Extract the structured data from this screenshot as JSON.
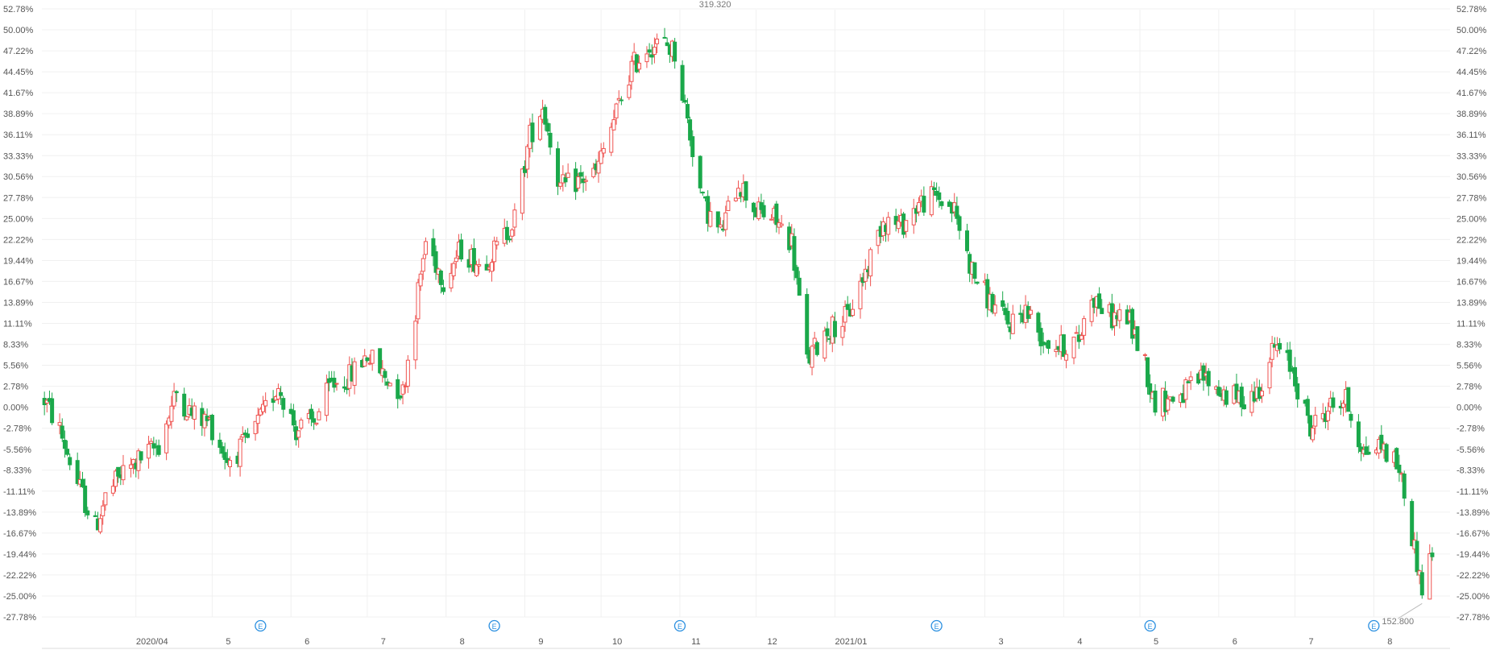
{
  "chart": {
    "max_price_label": "319.320",
    "min_price_label": "152.800",
    "earnings_marker_label": "E"
  },
  "chart_data": {
    "type": "candlestick",
    "y_unit": "% change",
    "ylim": [
      -27.78,
      52.78
    ],
    "y_ticks": [
      "52.78%",
      "50.00%",
      "47.22%",
      "44.45%",
      "41.67%",
      "38.89%",
      "36.11%",
      "33.33%",
      "30.56%",
      "27.78%",
      "25.00%",
      "22.22%",
      "19.44%",
      "16.67%",
      "13.89%",
      "11.11%",
      "8.33%",
      "5.56%",
      "2.78%",
      "0.00%",
      "-2.78%",
      "-5.56%",
      "-8.33%",
      "-11.11%",
      "-13.89%",
      "-16.67%",
      "-19.44%",
      "-22.22%",
      "-25.00%",
      "-27.78%"
    ],
    "x_start": "2020-02-24",
    "x_end": "2021-08-31",
    "x_ticks": [
      {
        "date": "2020-04-01",
        "label": "2020/04"
      },
      {
        "date": "2020-05-01",
        "label": "5"
      },
      {
        "date": "2020-06-01",
        "label": "6"
      },
      {
        "date": "2020-07-01",
        "label": "7"
      },
      {
        "date": "2020-08-01",
        "label": "8"
      },
      {
        "date": "2020-09-01",
        "label": "9"
      },
      {
        "date": "2020-10-01",
        "label": "10"
      },
      {
        "date": "2020-11-01",
        "label": "11"
      },
      {
        "date": "2020-12-01",
        "label": "12"
      },
      {
        "date": "2021-01-01",
        "label": "2021/01"
      },
      {
        "date": "2021-03-01",
        "label": "3"
      },
      {
        "date": "2021-04-01",
        "label": "4"
      },
      {
        "date": "2021-05-01",
        "label": "5"
      },
      {
        "date": "2021-06-01",
        "label": "6"
      },
      {
        "date": "2021-07-01",
        "label": "7"
      },
      {
        "date": "2021-08-01",
        "label": "8"
      }
    ],
    "earnings_dates": [
      "2020-05-20",
      "2020-08-20",
      "2020-11-01",
      "2021-02-10",
      "2021-05-05",
      "2021-08-01"
    ],
    "high_value": 319.32,
    "high_date": "2020-10-30",
    "low_value": 152.8,
    "low_date": "2021-08-20",
    "grid": true,
    "up_color": "#ef5350",
    "down_color": "#1aa84a",
    "price_path": [
      {
        "date": "2020-02-25",
        "pct": 1
      },
      {
        "date": "2020-03-02",
        "pct": -3
      },
      {
        "date": "2020-03-09",
        "pct": -10
      },
      {
        "date": "2020-03-16",
        "pct": -16
      },
      {
        "date": "2020-03-20",
        "pct": -12
      },
      {
        "date": "2020-03-26",
        "pct": -9
      },
      {
        "date": "2020-04-02",
        "pct": -7
      },
      {
        "date": "2020-04-10",
        "pct": -5
      },
      {
        "date": "2020-04-17",
        "pct": 2
      },
      {
        "date": "2020-04-23",
        "pct": -1
      },
      {
        "date": "2020-04-30",
        "pct": -2
      },
      {
        "date": "2020-05-07",
        "pct": -7
      },
      {
        "date": "2020-05-14",
        "pct": -5
      },
      {
        "date": "2020-05-21",
        "pct": -1
      },
      {
        "date": "2020-05-27",
        "pct": 3
      },
      {
        "date": "2020-06-03",
        "pct": -3
      },
      {
        "date": "2020-06-10",
        "pct": -2
      },
      {
        "date": "2020-06-17",
        "pct": 3
      },
      {
        "date": "2020-06-24",
        "pct": 4
      },
      {
        "date": "2020-07-01",
        "pct": 7
      },
      {
        "date": "2020-07-08",
        "pct": 4
      },
      {
        "date": "2020-07-15",
        "pct": 2
      },
      {
        "date": "2020-07-20",
        "pct": 13
      },
      {
        "date": "2020-07-24",
        "pct": 22
      },
      {
        "date": "2020-07-31",
        "pct": 17
      },
      {
        "date": "2020-08-07",
        "pct": 21
      },
      {
        "date": "2020-08-14",
        "pct": 19
      },
      {
        "date": "2020-08-21",
        "pct": 21
      },
      {
        "date": "2020-08-28",
        "pct": 25
      },
      {
        "date": "2020-09-03",
        "pct": 36
      },
      {
        "date": "2020-09-08",
        "pct": 40
      },
      {
        "date": "2020-09-15",
        "pct": 29
      },
      {
        "date": "2020-09-22",
        "pct": 30
      },
      {
        "date": "2020-09-29",
        "pct": 31
      },
      {
        "date": "2020-10-06",
        "pct": 38
      },
      {
        "date": "2020-10-13",
        "pct": 45
      },
      {
        "date": "2020-10-20",
        "pct": 48
      },
      {
        "date": "2020-10-27",
        "pct": 48
      },
      {
        "date": "2020-10-30",
        "pct": 47
      },
      {
        "date": "2020-11-04",
        "pct": 38
      },
      {
        "date": "2020-11-10",
        "pct": 27
      },
      {
        "date": "2020-11-17",
        "pct": 23
      },
      {
        "date": "2020-11-24",
        "pct": 30
      },
      {
        "date": "2020-12-01",
        "pct": 26
      },
      {
        "date": "2020-12-08",
        "pct": 25
      },
      {
        "date": "2020-12-15",
        "pct": 22
      },
      {
        "date": "2020-12-21",
        "pct": 6
      },
      {
        "date": "2020-12-28",
        "pct": 10
      },
      {
        "date": "2021-01-06",
        "pct": 12
      },
      {
        "date": "2021-01-13",
        "pct": 18
      },
      {
        "date": "2021-01-20",
        "pct": 25
      },
      {
        "date": "2021-01-27",
        "pct": 24
      },
      {
        "date": "2021-02-03",
        "pct": 27
      },
      {
        "date": "2021-02-10",
        "pct": 28
      },
      {
        "date": "2021-02-17",
        "pct": 26
      },
      {
        "date": "2021-02-24",
        "pct": 18
      },
      {
        "date": "2021-03-03",
        "pct": 14
      },
      {
        "date": "2021-03-10",
        "pct": 11
      },
      {
        "date": "2021-03-17",
        "pct": 13
      },
      {
        "date": "2021-03-24",
        "pct": 9
      },
      {
        "date": "2021-03-31",
        "pct": 8
      },
      {
        "date": "2021-04-07",
        "pct": 9
      },
      {
        "date": "2021-04-12",
        "pct": 15
      },
      {
        "date": "2021-04-19",
        "pct": 12
      },
      {
        "date": "2021-04-26",
        "pct": 12
      },
      {
        "date": "2021-05-03",
        "pct": 6
      },
      {
        "date": "2021-05-06",
        "pct": 1
      },
      {
        "date": "2021-05-12",
        "pct": 1
      },
      {
        "date": "2021-05-19",
        "pct": 2
      },
      {
        "date": "2021-05-26",
        "pct": 4
      },
      {
        "date": "2021-06-02",
        "pct": 2
      },
      {
        "date": "2021-06-09",
        "pct": 1
      },
      {
        "date": "2021-06-16",
        "pct": 2
      },
      {
        "date": "2021-06-23",
        "pct": 8
      },
      {
        "date": "2021-06-30",
        "pct": 5
      },
      {
        "date": "2021-07-07",
        "pct": -3
      },
      {
        "date": "2021-07-14",
        "pct": 0
      },
      {
        "date": "2021-07-21",
        "pct": 1
      },
      {
        "date": "2021-07-28",
        "pct": -6
      },
      {
        "date": "2021-08-04",
        "pct": -5
      },
      {
        "date": "2021-08-11",
        "pct": -8
      },
      {
        "date": "2021-08-16",
        "pct": -17
      },
      {
        "date": "2021-08-20",
        "pct": -24
      },
      {
        "date": "2021-08-24",
        "pct": -19
      }
    ]
  }
}
